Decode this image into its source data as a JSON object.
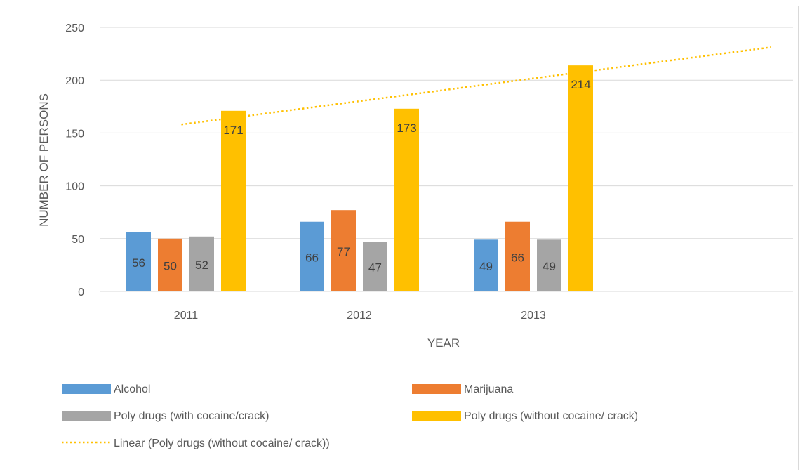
{
  "chart_data": {
    "type": "bar",
    "title": "",
    "xlabel": "YEAR",
    "ylabel": "NUMBER OF PERSONS",
    "categories": [
      "2011",
      "2012",
      "2013"
    ],
    "ylim": [
      0,
      250
    ],
    "yticks": [
      0,
      50,
      100,
      150,
      200,
      250
    ],
    "grid": true,
    "legend_position": "bottom",
    "series": [
      {
        "name": "Alcohol",
        "color": "#5B9BD5",
        "values": [
          56,
          66,
          49
        ]
      },
      {
        "name": "Marijuana",
        "color": "#ED7D31",
        "values": [
          50,
          77,
          66
        ]
      },
      {
        "name": "Poly drugs (with cocaine/crack)",
        "color": "#A5A5A5",
        "values": [
          52,
          47,
          49
        ]
      },
      {
        "name": "Poly drugs (without cocaine/ crack)",
        "color": "#FFC000",
        "values": [
          171,
          173,
          214
        ]
      }
    ],
    "trendline": {
      "name": "Linear (Poly drugs (without cocaine/ crack))",
      "type": "linear",
      "series": "Poly drugs (without cocaine/ crack)",
      "color": "#FFC000",
      "style": "dotted"
    }
  }
}
